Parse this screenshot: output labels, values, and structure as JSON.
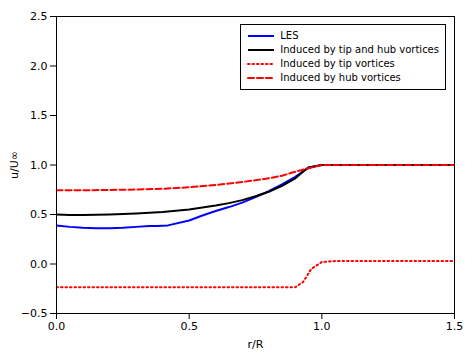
{
  "chart_data": {
    "type": "line",
    "xlabel": "r/R",
    "ylabel": "u/U∞",
    "xlim": [
      0,
      1.5
    ],
    "ylim": [
      -0.5,
      2.5
    ],
    "xticks": [
      {
        "value": 0,
        "label": "0.0"
      },
      {
        "value": 0.5,
        "label": "0.5"
      },
      {
        "value": 1,
        "label": "1.0"
      },
      {
        "value": 1.5,
        "label": "1.5"
      }
    ],
    "yticks": [
      {
        "value": -0.5,
        "label": "−0.5"
      },
      {
        "value": 0,
        "label": "0.0"
      },
      {
        "value": 0.5,
        "label": "0.5"
      },
      {
        "value": 1,
        "label": "1.0"
      },
      {
        "value": 1.5,
        "label": "1.5"
      },
      {
        "value": 2,
        "label": "2.0"
      },
      {
        "value": 2.5,
        "label": "2.5"
      }
    ],
    "grid": false,
    "legend": "upper right",
    "series": [
      {
        "name": "LES",
        "color": "#0000ff",
        "line_style": "solid",
        "x": [
          0.0,
          0.05,
          0.1,
          0.15,
          0.2,
          0.25,
          0.3,
          0.35,
          0.38,
          0.42,
          0.5,
          0.55,
          0.6,
          0.65,
          0.7,
          0.75,
          0.8,
          0.85,
          0.9,
          0.95,
          1.0,
          1.05,
          1.1,
          1.2,
          1.3,
          1.4,
          1.5
        ],
        "values": [
          0.39,
          0.375,
          0.365,
          0.36,
          0.36,
          0.365,
          0.375,
          0.385,
          0.385,
          0.39,
          0.44,
          0.49,
          0.535,
          0.575,
          0.62,
          0.675,
          0.735,
          0.805,
          0.88,
          0.975,
          1.0,
          1.0,
          1.0,
          1.0,
          1.0,
          1.0,
          1.0
        ]
      },
      {
        "name": "Induced by tip and hub vortices",
        "color": "#000000",
        "line_style": "solid",
        "x": [
          0.0,
          0.05,
          0.1,
          0.2,
          0.3,
          0.4,
          0.5,
          0.6,
          0.65,
          0.7,
          0.75,
          0.8,
          0.85,
          0.9,
          0.93,
          0.95,
          1.0,
          1.05,
          1.1,
          1.2,
          1.3,
          1.4,
          1.5
        ],
        "values": [
          0.5,
          0.495,
          0.495,
          0.5,
          0.51,
          0.525,
          0.55,
          0.59,
          0.615,
          0.645,
          0.685,
          0.73,
          0.79,
          0.865,
          0.935,
          0.975,
          1.0,
          1.0,
          1.0,
          1.0,
          1.0,
          1.0,
          1.0
        ]
      },
      {
        "name": "Induced by tip vortices",
        "color": "#ff0000",
        "line_style": "dotted",
        "x": [
          0.0,
          0.1,
          0.2,
          0.3,
          0.4,
          0.5,
          0.6,
          0.7,
          0.8,
          0.85,
          0.9,
          0.93,
          0.96,
          1.0,
          1.05,
          1.1,
          1.2,
          1.3,
          1.4,
          1.5
        ],
        "values": [
          -0.235,
          -0.235,
          -0.235,
          -0.235,
          -0.235,
          -0.235,
          -0.235,
          -0.235,
          -0.235,
          -0.235,
          -0.235,
          -0.18,
          -0.05,
          0.02,
          0.03,
          0.03,
          0.03,
          0.03,
          0.03,
          0.03
        ]
      },
      {
        "name": "Induced by hub vortices",
        "color": "#ff0000",
        "line_style": "dashed",
        "x": [
          0.0,
          0.1,
          0.2,
          0.3,
          0.4,
          0.5,
          0.6,
          0.7,
          0.8,
          0.85,
          0.9,
          0.95,
          1.0,
          1.05,
          1.1,
          1.2,
          1.3,
          1.4,
          1.5
        ],
        "values": [
          0.745,
          0.745,
          0.748,
          0.752,
          0.76,
          0.775,
          0.798,
          0.828,
          0.865,
          0.892,
          0.932,
          0.968,
          1.0,
          1.0,
          1.0,
          1.0,
          1.0,
          1.0,
          1.0
        ]
      }
    ]
  }
}
